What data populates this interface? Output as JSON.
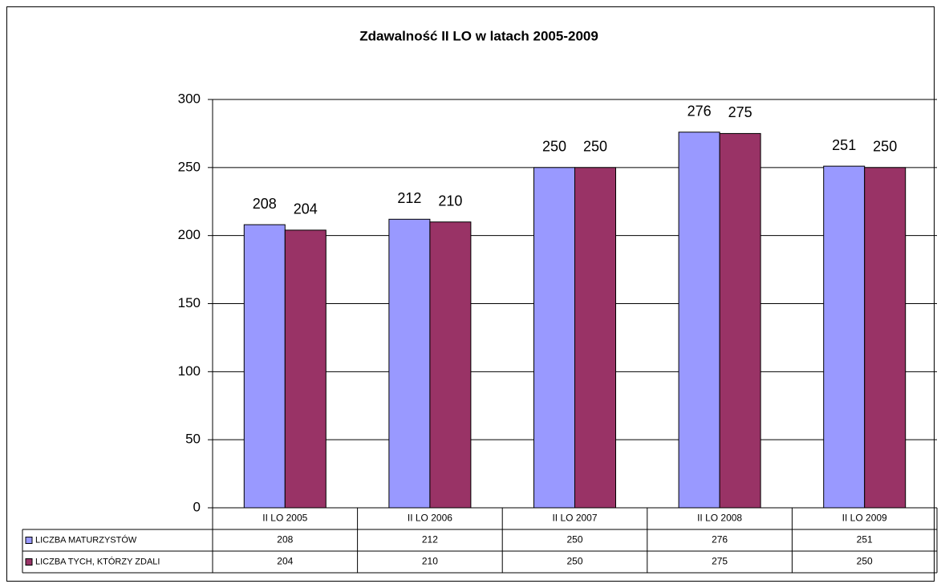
{
  "chart_data": {
    "type": "bar",
    "title": "Zdawalność II LO w latach 2005-2009",
    "categories": [
      "II LO 2005",
      "II LO 2006",
      "II LO 2007",
      "II LO 2008",
      "II LO 2009"
    ],
    "series": [
      {
        "name": "LICZBA MATURZYSTÓW",
        "color": "#9999ff",
        "values": [
          208,
          212,
          250,
          276,
          251
        ]
      },
      {
        "name": "LICZBA TYCH, KTÓRZY ZDALI",
        "color": "#993366",
        "values": [
          204,
          210,
          250,
          275,
          250
        ]
      }
    ],
    "ylim": [
      0,
      300
    ],
    "yticks": [
      0,
      50,
      100,
      150,
      200,
      250,
      300
    ],
    "grid": true,
    "data_table": true
  }
}
